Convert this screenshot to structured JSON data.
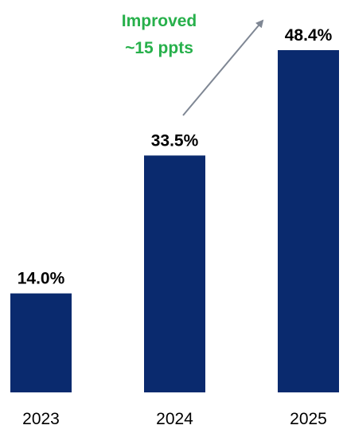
{
  "colors": {
    "bar": "#0a2a6e",
    "annotation_text": "#27b04b",
    "arrow": "#7f8794"
  },
  "chart_data": {
    "type": "bar",
    "categories": [
      "2023",
      "2024",
      "2025"
    ],
    "values": [
      14.0,
      33.5,
      48.4
    ],
    "value_labels": [
      "14.0%",
      "33.5%",
      "48.4%"
    ],
    "title": "",
    "xlabel": "",
    "ylabel": "",
    "ylim": [
      0,
      48.4
    ],
    "grid": false,
    "legend": "none",
    "annotation": {
      "lines": [
        "Improved",
        "~15 ppts"
      ],
      "from_category": "2024",
      "to_category": "2025"
    }
  }
}
